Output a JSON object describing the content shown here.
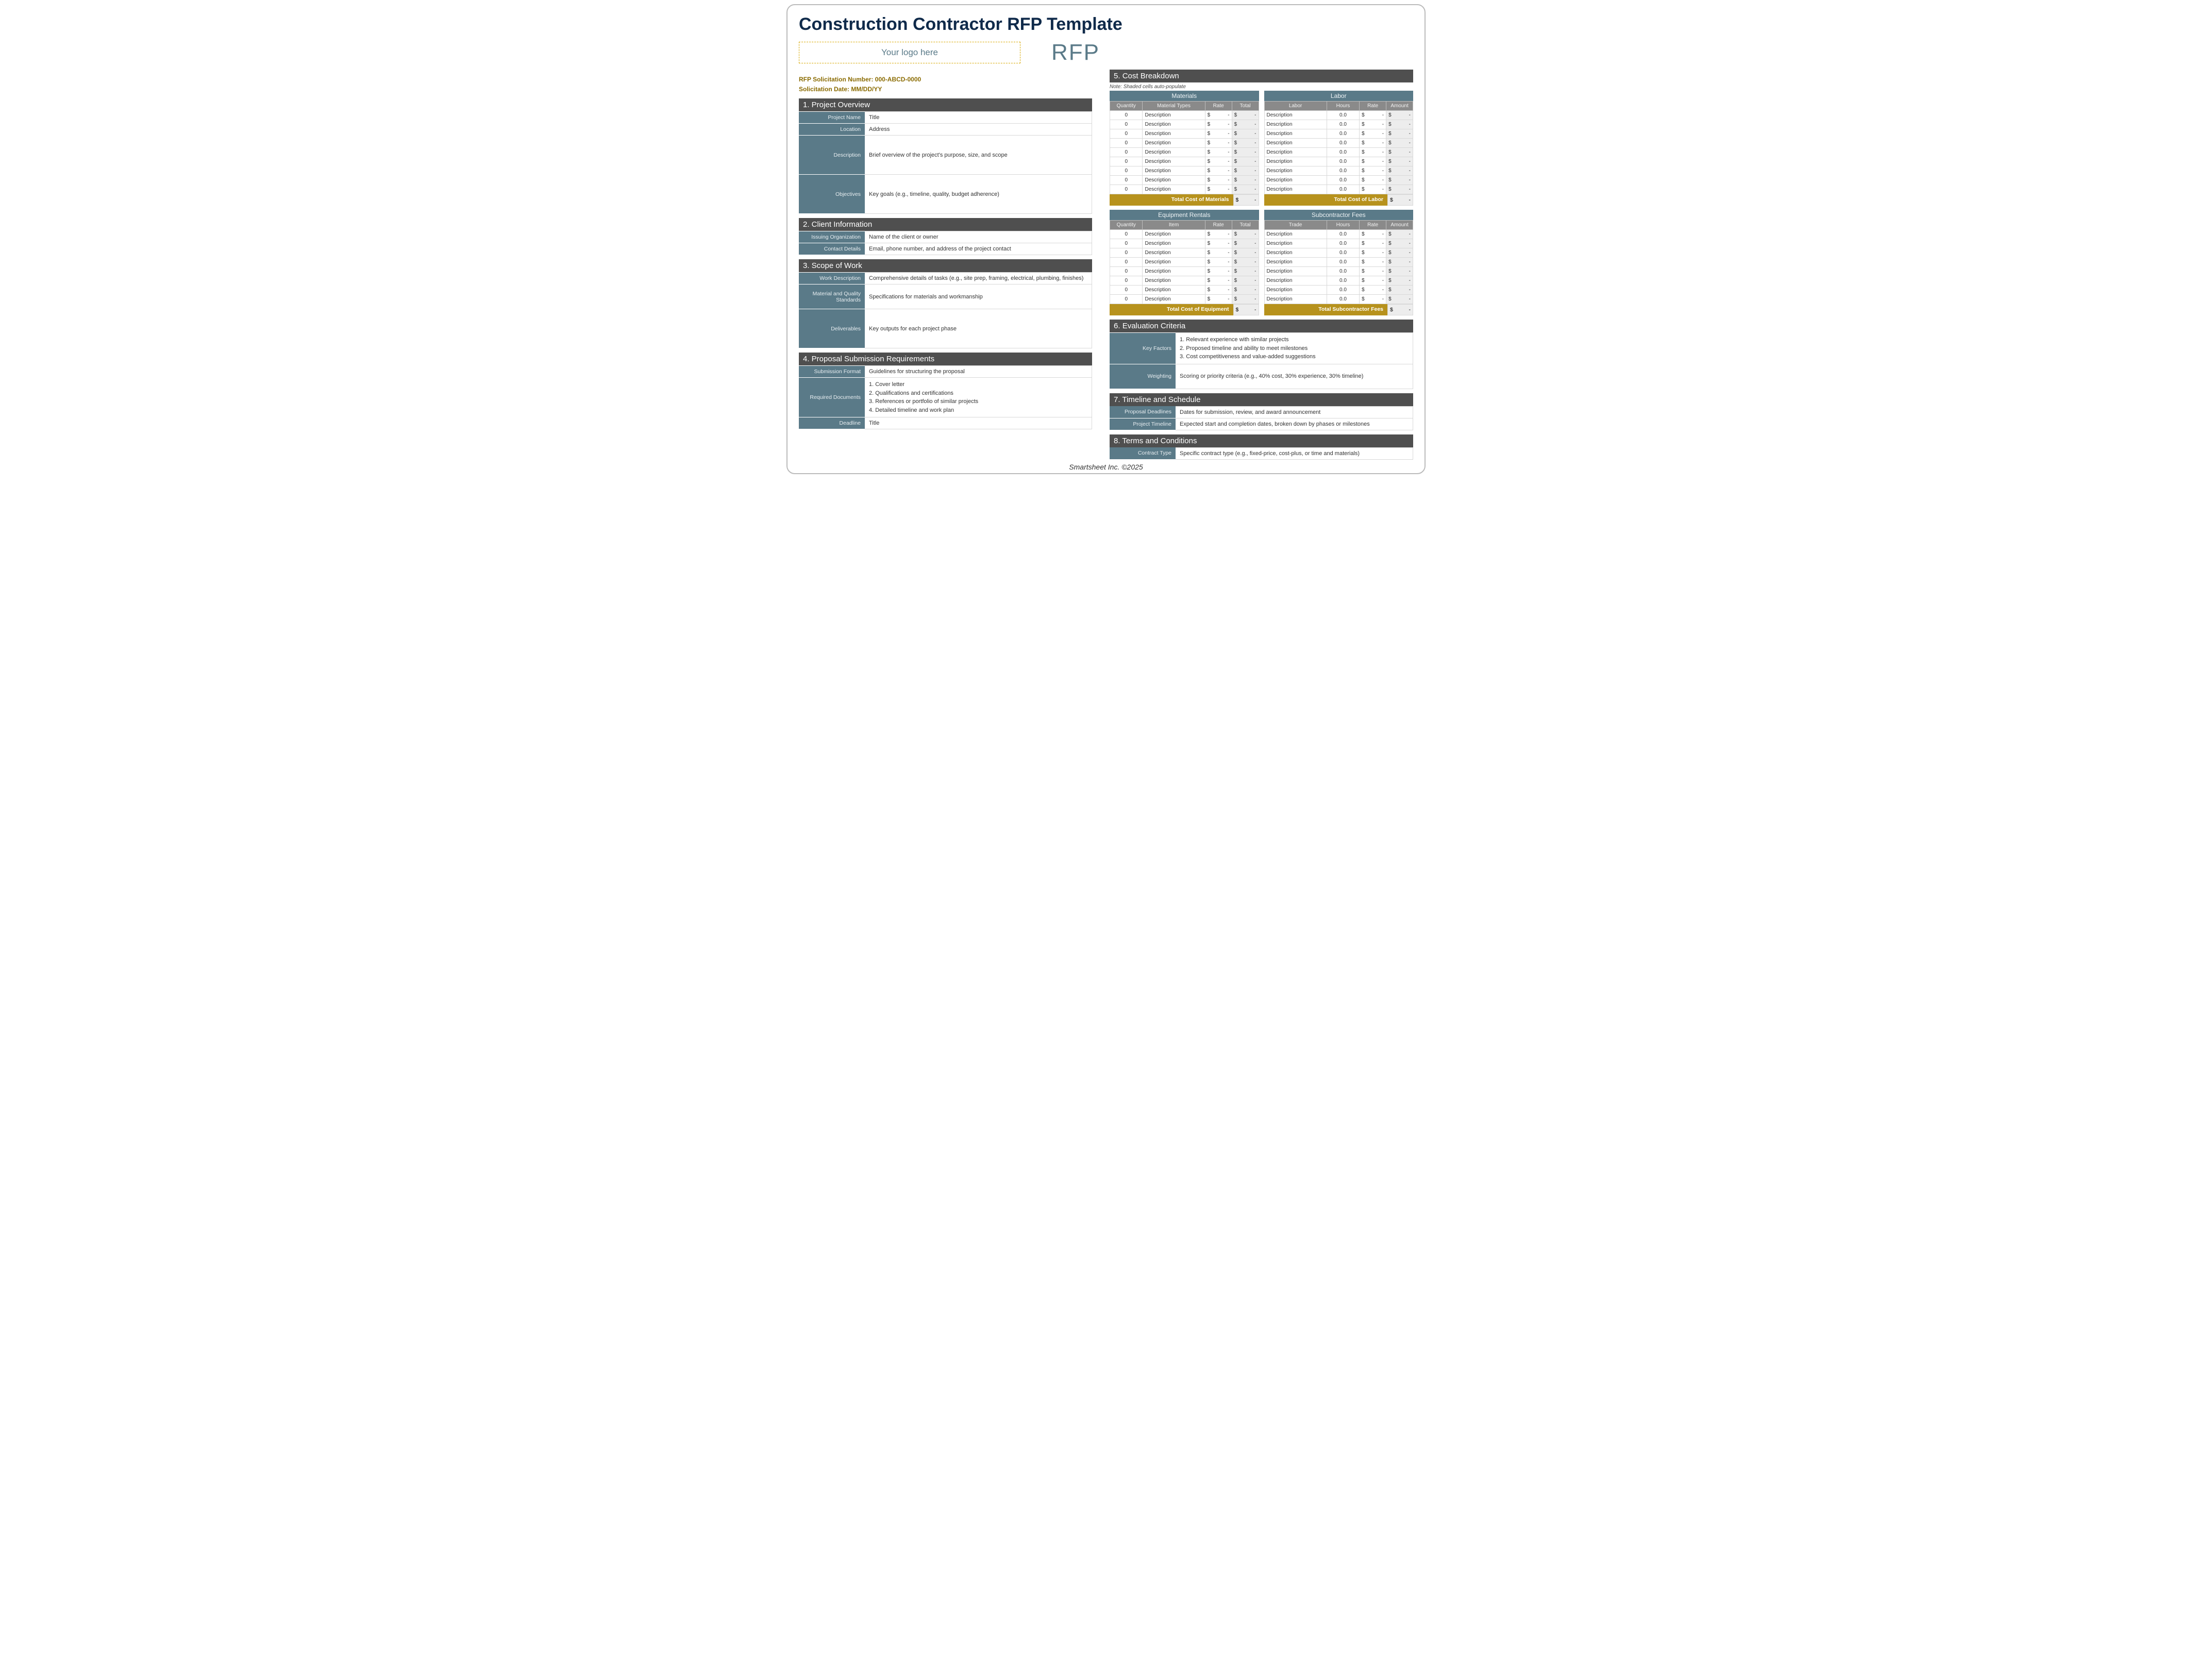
{
  "title": "Construction Contractor RFP Template",
  "logo_placeholder": "Your logo here",
  "rfp_badge": "RFP",
  "meta": {
    "solicitation_number_label": "RFP Solicitation Number: 000-ABCD-0000",
    "solicitation_date_label": "Solicitation Date: MM/DD/YY"
  },
  "colors": {
    "header_dark": "#4f4f4f",
    "slate": "#5a7a88",
    "gold": "#b7921d",
    "title_navy": "#0f2a4a",
    "meta_gold": "#8a6b00",
    "col_grey": "#8a8a8a",
    "shade": "#ededed"
  },
  "sec1": {
    "title": "1. Project Overview",
    "rows": [
      {
        "label": "Project Name",
        "value": "Title"
      },
      {
        "label": "Location",
        "value": "Address"
      },
      {
        "label": "Description",
        "value": "Brief overview of the project's purpose, size, and scope",
        "tall": true
      },
      {
        "label": "Objectives",
        "value": "Key goals (e.g., timeline, quality, budget adherence)",
        "tall": true
      }
    ]
  },
  "sec2": {
    "title": "2. Client Information",
    "rows": [
      {
        "label": "Issuing Organization",
        "value": "Name of the client or owner"
      },
      {
        "label": "Contact Details",
        "value": "Email, phone number, and address of the project contact"
      }
    ]
  },
  "sec3": {
    "title": "3. Scope of Work",
    "rows": [
      {
        "label": "Work Description",
        "value": "Comprehensive details of tasks (e.g., site prep, framing, electrical, plumbing, finishes)"
      },
      {
        "label": "Material and Quality Standards",
        "value": "Specifications for materials and workmanship",
        "mid": true
      },
      {
        "label": "Deliverables",
        "value": "Key outputs for each project phase",
        "tall": true
      }
    ]
  },
  "sec4": {
    "title": "4. Proposal Submission Requirements",
    "rows": [
      {
        "label": "Submission Format",
        "value": "Guidelines for structuring the proposal"
      },
      {
        "label": "Required Documents",
        "list": [
          "1. Cover letter",
          "2. Qualifications and certifications",
          "3. References or portfolio of similar projects",
          "4. Detailed timeline and work plan"
        ]
      },
      {
        "label": "Deadline",
        "value": "Title"
      }
    ]
  },
  "sec5": {
    "title": "5. Cost Breakdown",
    "note": "Note: Shaded cells auto-populate",
    "blocks": [
      {
        "name": "Materials",
        "cols": [
          "Quantity",
          "Material Types",
          "Rate",
          "Total"
        ],
        "qty_label": "0",
        "desc_label": "Description",
        "row_count": 9,
        "total_label": "Total Cost of Materials"
      },
      {
        "name": "Labor",
        "cols": [
          "Labor",
          "Hours",
          "Rate",
          "Amount"
        ],
        "desc_first": true,
        "qty_label": "0.0",
        "desc_label": "Description",
        "row_count": 9,
        "total_label": "Total Cost of Labor"
      },
      {
        "name": "Equipment Rentals",
        "cols": [
          "Quantity",
          "Item",
          "Rate",
          "Total"
        ],
        "qty_label": "0",
        "desc_label": "Description",
        "row_count": 8,
        "total_label": "Total Cost of Equipment"
      },
      {
        "name": "Subcontractor Fees",
        "cols": [
          "Trade",
          "Hours",
          "Rate",
          "Amount"
        ],
        "desc_first": true,
        "qty_label": "0.0",
        "desc_label": "Description",
        "row_count": 8,
        "total_label": "Total Subcontractor Fees"
      }
    ],
    "currency": "$",
    "dash": "-"
  },
  "sec6": {
    "title": "6. Evaluation Criteria",
    "rows": [
      {
        "label": "Key Factors",
        "list": [
          "1. Relevant experience with similar projects",
          "2. Proposed timeline and ability to meet milestones",
          "3. Cost competitiveness and value-added suggestions"
        ]
      },
      {
        "label": "Weighting",
        "value": "Scoring or priority criteria (e.g., 40% cost, 30% experience, 30% timeline)",
        "mid": true
      }
    ]
  },
  "sec7": {
    "title": "7. Timeline and Schedule",
    "rows": [
      {
        "label": "Proposal Deadlines",
        "value": "Dates for submission, review, and award announcement"
      },
      {
        "label": "Project Timeline",
        "value": "Expected start and completion dates, broken down by phases or milestones"
      }
    ]
  },
  "sec8": {
    "title": "8. Terms and Conditions",
    "rows": [
      {
        "label": "Contract Type",
        "value": "Specific contract type (e.g., fixed-price, cost-plus, or time and materials)"
      }
    ]
  },
  "footer": "Smartsheet Inc. ©2025"
}
